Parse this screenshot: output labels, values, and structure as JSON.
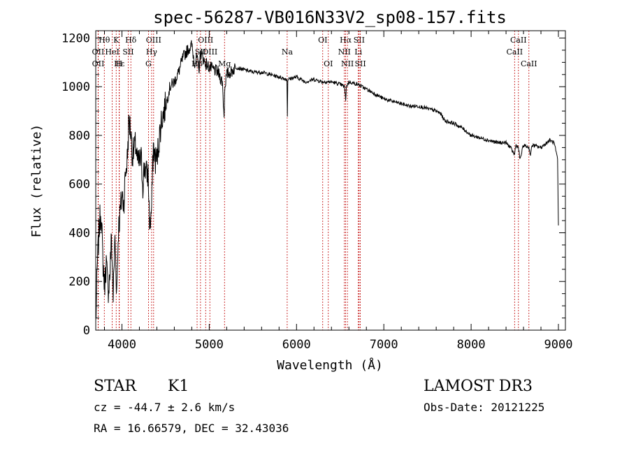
{
  "chart_data": {
    "type": "line",
    "title": "spec-56287-VB016N33V2_sp08-157.fits",
    "xlabel": "Wavelength (Å)",
    "ylabel": "Flux (relative)",
    "xlim": [
      3700,
      9080
    ],
    "ylim": [
      0,
      1230
    ],
    "xticks": [
      4000,
      5000,
      6000,
      7000,
      8000,
      9000
    ],
    "yticks": [
      0,
      200,
      400,
      600,
      800,
      1000,
      1200
    ],
    "spectrum": {
      "x": [
        3700,
        3720,
        3740,
        3760,
        3780,
        3800,
        3820,
        3840,
        3860,
        3880,
        3900,
        3920,
        3940,
        3960,
        3980,
        4000,
        4020,
        4040,
        4060,
        4080,
        4100,
        4120,
        4140,
        4160,
        4180,
        4200,
        4220,
        4240,
        4260,
        4280,
        4300,
        4320,
        4340,
        4360,
        4380,
        4400,
        4450,
        4500,
        4550,
        4600,
        4650,
        4700,
        4750,
        4800,
        4830,
        4860,
        4880,
        4900,
        4950,
        5000,
        5050,
        5100,
        5150,
        5170,
        5180,
        5200,
        5250,
        5300,
        5400,
        5500,
        5600,
        5700,
        5800,
        5890,
        5895,
        5900,
        6000,
        6100,
        6200,
        6300,
        6400,
        6500,
        6550,
        6563,
        6570,
        6600,
        6700,
        6800,
        6900,
        7000,
        7100,
        7200,
        7300,
        7400,
        7500,
        7600,
        7650,
        7700,
        7800,
        7900,
        8000,
        8100,
        8200,
        8300,
        8400,
        8450,
        8498,
        8510,
        8542,
        8560,
        8600,
        8662,
        8680,
        8700,
        8800,
        8900,
        8950,
        8990,
        9000
      ],
      "flux": [
        30,
        280,
        420,
        500,
        300,
        180,
        280,
        160,
        220,
        380,
        140,
        380,
        160,
        420,
        480,
        560,
        520,
        640,
        700,
        860,
        820,
        720,
        740,
        760,
        680,
        690,
        700,
        600,
        680,
        640,
        640,
        420,
        500,
        760,
        700,
        700,
        860,
        920,
        1000,
        1020,
        1060,
        1120,
        1150,
        1170,
        1100,
        1120,
        1060,
        1140,
        1100,
        1080,
        1070,
        1060,
        1020,
        880,
        1010,
        1050,
        1060,
        1080,
        1070,
        1060,
        1060,
        1050,
        1040,
        1030,
        880,
        1030,
        1040,
        1020,
        1030,
        1020,
        1020,
        1010,
        1000,
        940,
        1000,
        1020,
        1010,
        990,
        970,
        950,
        940,
        930,
        920,
        920,
        910,
        900,
        890,
        860,
        850,
        830,
        800,
        790,
        780,
        770,
        770,
        750,
        720,
        760,
        750,
        700,
        760,
        750,
        720,
        760,
        750,
        780,
        770,
        700,
        430
      ],
      "jitter": 26
    },
    "lines": [
      {
        "label": "Hθ",
        "wave": 3798,
        "row": 0
      },
      {
        "label": "K",
        "wave": 3934,
        "row": 0
      },
      {
        "label": "Hδ",
        "wave": 4102,
        "row": 0
      },
      {
        "label": "OIII",
        "wave": 4363,
        "row": 0
      },
      {
        "label": "OIII",
        "wave": 4959,
        "row": 0
      },
      {
        "label": "OI",
        "wave": 6300,
        "row": 0
      },
      {
        "label": "Hα",
        "wave": 6563,
        "row": 0
      },
      {
        "label": "SII",
        "wave": 6717,
        "row": 0
      },
      {
        "label": "CaII",
        "wave": 8542,
        "row": 0
      },
      {
        "label": "OII",
        "wave": 3727,
        "row": 1
      },
      {
        "label": "HeI",
        "wave": 3889,
        "row": 1
      },
      {
        "label": "SII",
        "wave": 4072,
        "row": 1
      },
      {
        "label": "Hγ",
        "wave": 4340,
        "row": 1
      },
      {
        "label": "SII",
        "wave": 4900,
        "row": 1
      },
      {
        "label": "OIII",
        "wave": 5007,
        "row": 1
      },
      {
        "label": "Na",
        "wave": 5893,
        "row": 1
      },
      {
        "label": "NII",
        "wave": 6548,
        "row": 1
      },
      {
        "label": "Li",
        "wave": 6708,
        "row": 1
      },
      {
        "label": "CaII",
        "wave": 8498,
        "row": 1
      },
      {
        "label": "OII",
        "wave": 3728,
        "row": 2
      },
      {
        "label": "Hε",
        "wave": 3970,
        "row": 2
      },
      {
        "label": "H",
        "wave": 3968,
        "row": 2
      },
      {
        "label": "G",
        "wave": 4304,
        "row": 2
      },
      {
        "label": "Hβ",
        "wave": 4861,
        "row": 2
      },
      {
        "label": "Mg",
        "wave": 5175,
        "row": 2
      },
      {
        "label": "OI",
        "wave": 6364,
        "row": 2
      },
      {
        "label": "NII",
        "wave": 6583,
        "row": 2
      },
      {
        "label": "SII",
        "wave": 6731,
        "row": 2
      },
      {
        "label": "CaII",
        "wave": 8662,
        "row": 2
      }
    ]
  },
  "info": {
    "class": "STAR",
    "subclass": "K1",
    "survey": "LAMOST DR3",
    "cz": "cz = -44.7 ± 2.6 km/s",
    "obsdate": "Obs-Date: 20121225",
    "radec": "RA =  16.66579, DEC =  32.43036"
  }
}
